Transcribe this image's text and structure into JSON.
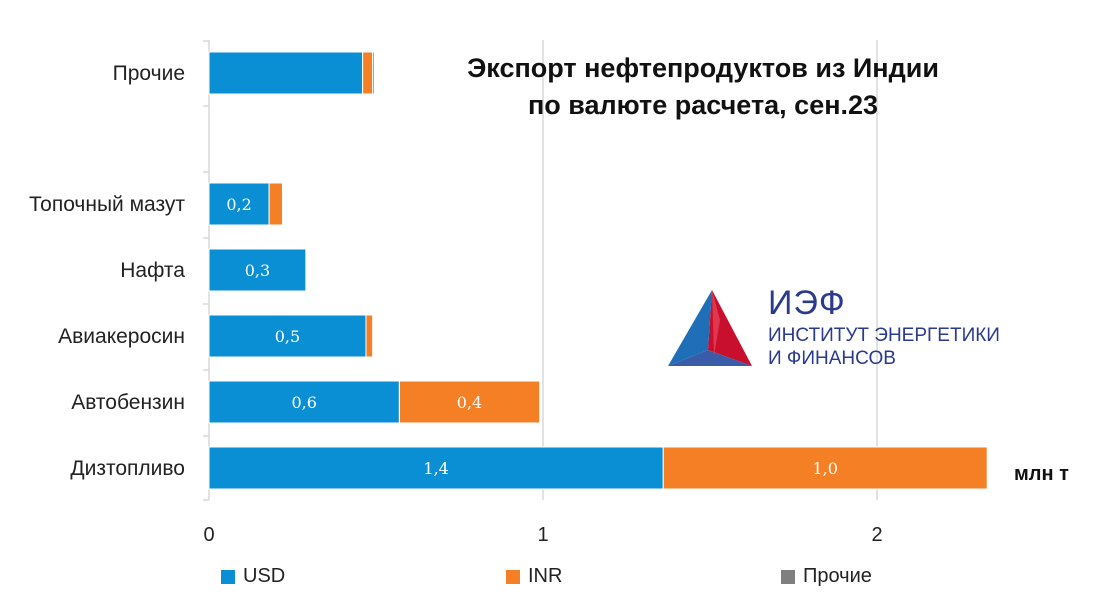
{
  "title": {
    "line1": "Экспорт нефтепродуктов из Индии",
    "line2": "по валюте расчета, сен.23"
  },
  "unit_label": "млн т",
  "logo": {
    "abbr": "ИЭФ",
    "line1": "ИНСТИТУТ ЭНЕРГЕТИКИ",
    "line2": "И ФИНАНСОВ",
    "color": "#2a3a8c"
  },
  "chart_data": {
    "type": "bar",
    "orientation": "horizontal",
    "stacked": true,
    "categories": [
      "Прочие",
      "Топочный мазут",
      "Нафта",
      "Авиакеросин",
      "Автобензин",
      "Дизтопливо"
    ],
    "series": [
      {
        "name": "USD",
        "color": "#0a8fd4",
        "values": [
          0.46,
          0.18,
          0.29,
          0.47,
          0.57,
          1.36
        ],
        "labels": [
          "",
          "0,2",
          "0,3",
          "0,5",
          "0,6",
          "1,4"
        ]
      },
      {
        "name": "INR",
        "color": "#f47f24",
        "values": [
          0.03,
          0.04,
          0.0,
          0.02,
          0.42,
          0.97
        ],
        "labels": [
          "",
          "",
          "",
          "",
          "0,4",
          "1,0"
        ]
      },
      {
        "name": "Прочие",
        "color": "#7f7f7f",
        "values": [
          0.005,
          0.0,
          0.0,
          0.0,
          0.0,
          0.0
        ],
        "labels": [
          "",
          "",
          "",
          "",
          "",
          ""
        ]
      }
    ],
    "x_ticks": [
      "0",
      "1",
      "2"
    ],
    "xlim": [
      0,
      2.5
    ],
    "grid": true,
    "legend_position": "bottom"
  }
}
